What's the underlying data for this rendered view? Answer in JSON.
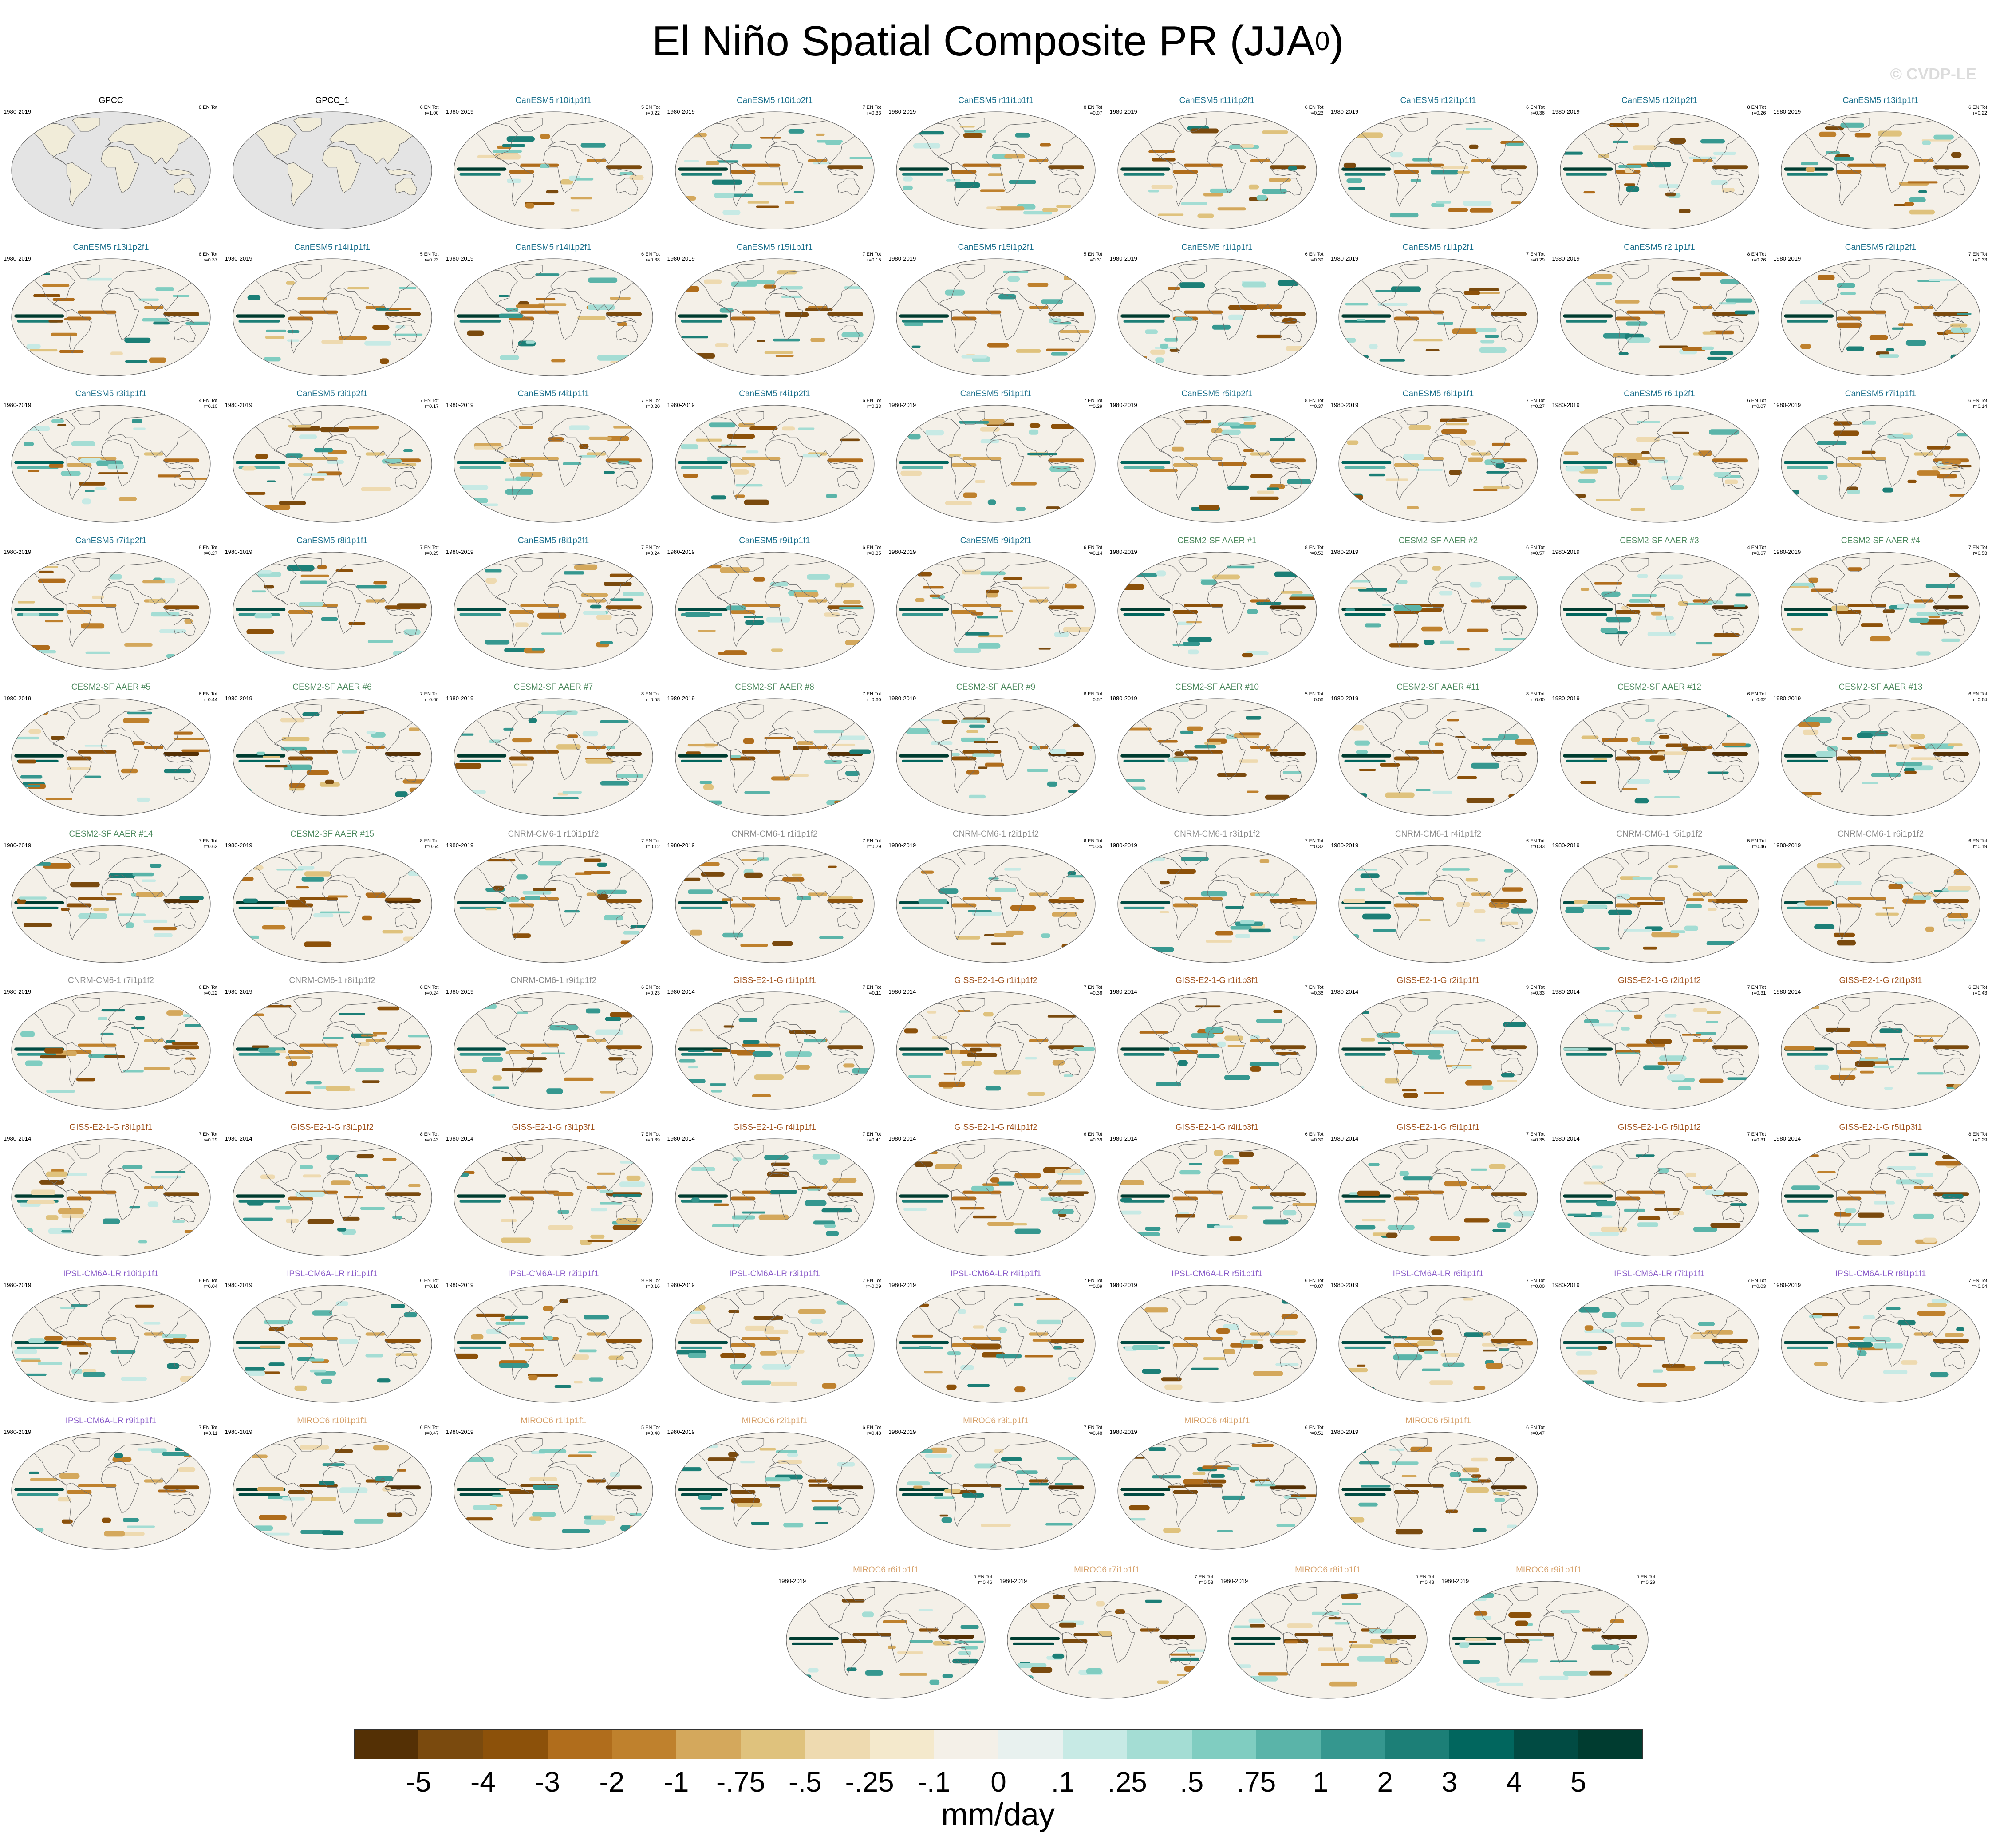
{
  "title": {
    "main": "El Niño Spatial Composite PR (JJA",
    "superscript": "0",
    "tail": ")"
  },
  "watermark": "© CVDP-LE",
  "groups": {
    "obs": {
      "color": "#000000"
    },
    "CanESM5": {
      "color": "#1a6f8c"
    },
    "CESM2-SF AAER": {
      "color": "#4e8a5f"
    },
    "CNRM-CM6-1": {
      "color": "#8c8c8c"
    },
    "GISS-E2-1-G": {
      "color": "#a0521d"
    },
    "IPSL-CM6A-LR": {
      "color": "#8a5cc9"
    },
    "MIROC6": {
      "color": "#d6a069"
    }
  },
  "panels": [
    {
      "title": "GPCC",
      "period": "1980-2019",
      "count": "8 EN Tot",
      "r": "",
      "group": "obs",
      "pattern": 0
    },
    {
      "title": "GPCC_1",
      "period": "",
      "count": "6 EN Tot",
      "r": "r=1.00",
      "group": "obs",
      "pattern": 0
    },
    {
      "title": "CanESM5 r10i1p1f1",
      "period": "1980-2019",
      "count": "5 EN Tot",
      "r": "r=0.22",
      "group": "CanESM5",
      "pattern": 1
    },
    {
      "title": "CanESM5 r10i1p2f1",
      "period": "1980-2019",
      "count": "7 EN Tot",
      "r": "r=0.33",
      "group": "CanESM5",
      "pattern": 1
    },
    {
      "title": "CanESM5 r11i1p1f1",
      "period": "1980-2019",
      "count": "8 EN Tot",
      "r": "r=0.07",
      "group": "CanESM5",
      "pattern": 1
    },
    {
      "title": "CanESM5 r11i1p2f1",
      "period": "1980-2019",
      "count": "6 EN Tot",
      "r": "r=0.23",
      "group": "CanESM5",
      "pattern": 1
    },
    {
      "title": "CanESM5 r12i1p1f1",
      "period": "1980-2019",
      "count": "6 EN Tot",
      "r": "r=0.36",
      "group": "CanESM5",
      "pattern": 1
    },
    {
      "title": "CanESM5 r12i1p2f1",
      "period": "1980-2019",
      "count": "8 EN Tot",
      "r": "r=0.26",
      "group": "CanESM5",
      "pattern": 1
    },
    {
      "title": "CanESM5 r13i1p1f1",
      "period": "1980-2019",
      "count": "6 EN Tot",
      "r": "r=0.22",
      "group": "CanESM5",
      "pattern": 1
    },
    {
      "title": "CanESM5 r13i1p2f1",
      "period": "1980-2019",
      "count": "8 EN Tot",
      "r": "r=0.37",
      "group": "CanESM5",
      "pattern": 2
    },
    {
      "title": "CanESM5 r14i1p1f1",
      "period": "1980-2019",
      "count": "5 EN Tot",
      "r": "r=0.23",
      "group": "CanESM5",
      "pattern": 2
    },
    {
      "title": "CanESM5 r14i1p2f1",
      "period": "1980-2019",
      "count": "6 EN Tot",
      "r": "r=0.38",
      "group": "CanESM5",
      "pattern": 2
    },
    {
      "title": "CanESM5 r15i1p1f1",
      "period": "1980-2019",
      "count": "7 EN Tot",
      "r": "r=0.15",
      "group": "CanESM5",
      "pattern": 2
    },
    {
      "title": "CanESM5 r15i1p2f1",
      "period": "1980-2019",
      "count": "5 EN Tot",
      "r": "r=0.31",
      "group": "CanESM5",
      "pattern": 2
    },
    {
      "title": "CanESM5 r1i1p1f1",
      "period": "1980-2019",
      "count": "6 EN Tot",
      "r": "r=0.39",
      "group": "CanESM5",
      "pattern": 2
    },
    {
      "title": "CanESM5 r1i1p2f1",
      "period": "1980-2019",
      "count": "7 EN Tot",
      "r": "r=0.29",
      "group": "CanESM5",
      "pattern": 2
    },
    {
      "title": "CanESM5 r2i1p1f1",
      "period": "1980-2019",
      "count": "8 EN Tot",
      "r": "r=0.26",
      "group": "CanESM5",
      "pattern": 2
    },
    {
      "title": "CanESM5 r2i1p2f1",
      "period": "1980-2019",
      "count": "7 EN Tot",
      "r": "r=0.33",
      "group": "CanESM5",
      "pattern": 2
    },
    {
      "title": "CanESM5 r3i1p1f1",
      "period": "1980-2019",
      "count": "4 EN Tot",
      "r": "r=0.10",
      "group": "CanESM5",
      "pattern": 3
    },
    {
      "title": "CanESM5 r3i1p2f1",
      "period": "1980-2019",
      "count": "7 EN Tot",
      "r": "r=0.17",
      "group": "CanESM5",
      "pattern": 3
    },
    {
      "title": "CanESM5 r4i1p1f1",
      "period": "1980-2019",
      "count": "7 EN Tot",
      "r": "r=0.20",
      "group": "CanESM5",
      "pattern": 3
    },
    {
      "title": "CanESM5 r4i1p2f1",
      "period": "1980-2019",
      "count": "6 EN Tot",
      "r": "r=0.23",
      "group": "CanESM5",
      "pattern": 3
    },
    {
      "title": "CanESM5 r5i1p1f1",
      "period": "1980-2019",
      "count": "7 EN Tot",
      "r": "r=0.29",
      "group": "CanESM5",
      "pattern": 3
    },
    {
      "title": "CanESM5 r5i1p2f1",
      "period": "1980-2019",
      "count": "8 EN Tot",
      "r": "r=0.37",
      "group": "CanESM5",
      "pattern": 3
    },
    {
      "title": "CanESM5 r6i1p1f1",
      "period": "1980-2019",
      "count": "7 EN Tot",
      "r": "r=0.27",
      "group": "CanESM5",
      "pattern": 3
    },
    {
      "title": "CanESM5 r6i1p2f1",
      "period": "1980-2019",
      "count": "6 EN Tot",
      "r": "r=0.07",
      "group": "CanESM5",
      "pattern": 3
    },
    {
      "title": "CanESM5 r7i1p1f1",
      "period": "1980-2019",
      "count": "6 EN Tot",
      "r": "r=0.14",
      "group": "CanESM5",
      "pattern": 3
    },
    {
      "title": "CanESM5 r7i1p2f1",
      "period": "1980-2019",
      "count": "8 EN Tot",
      "r": "r=0.27",
      "group": "CanESM5",
      "pattern": 4
    },
    {
      "title": "CanESM5 r8i1p1f1",
      "period": "1980-2019",
      "count": "7 EN Tot",
      "r": "r=0.25",
      "group": "CanESM5",
      "pattern": 4
    },
    {
      "title": "CanESM5 r8i1p2f1",
      "period": "1980-2019",
      "count": "7 EN Tot",
      "r": "r=0.24",
      "group": "CanESM5",
      "pattern": 4
    },
    {
      "title": "CanESM5 r9i1p1f1",
      "period": "1980-2019",
      "count": "6 EN Tot",
      "r": "r=0.35",
      "group": "CanESM5",
      "pattern": 4
    },
    {
      "title": "CanESM5 r9i1p2f1",
      "period": "1980-2019",
      "count": "6 EN Tot",
      "r": "r=0.14",
      "group": "CanESM5",
      "pattern": 4
    },
    {
      "title": "CESM2-SF AAER #1",
      "period": "1980-2019",
      "count": "8 EN Tot",
      "r": "r=0.53",
      "group": "CESM2-SF AAER",
      "pattern": 5
    },
    {
      "title": "CESM2-SF AAER #2",
      "period": "1980-2019",
      "count": "6 EN Tot",
      "r": "r=0.57",
      "group": "CESM2-SF AAER",
      "pattern": 5
    },
    {
      "title": "CESM2-SF AAER #3",
      "period": "1980-2019",
      "count": "4 EN Tot",
      "r": "r=0.67",
      "group": "CESM2-SF AAER",
      "pattern": 5
    },
    {
      "title": "CESM2-SF AAER #4",
      "period": "1980-2019",
      "count": "7 EN Tot",
      "r": "r=0.53",
      "group": "CESM2-SF AAER",
      "pattern": 5
    },
    {
      "title": "CESM2-SF AAER #5",
      "period": "1980-2019",
      "count": "6 EN Tot",
      "r": "r=0.44",
      "group": "CESM2-SF AAER",
      "pattern": 5
    },
    {
      "title": "CESM2-SF AAER #6",
      "period": "1980-2019",
      "count": "7 EN Tot",
      "r": "r=0.60",
      "group": "CESM2-SF AAER",
      "pattern": 5
    },
    {
      "title": "CESM2-SF AAER #7",
      "period": "1980-2019",
      "count": "8 EN Tot",
      "r": "r=0.58",
      "group": "CESM2-SF AAER",
      "pattern": 5
    },
    {
      "title": "CESM2-SF AAER #8",
      "period": "1980-2019",
      "count": "7 EN Tot",
      "r": "r=0.60",
      "group": "CESM2-SF AAER",
      "pattern": 5
    },
    {
      "title": "CESM2-SF AAER #9",
      "period": "1980-2019",
      "count": "6 EN Tot",
      "r": "r=0.57",
      "group": "CESM2-SF AAER",
      "pattern": 5
    },
    {
      "title": "CESM2-SF AAER #10",
      "period": "1980-2019",
      "count": "5 EN Tot",
      "r": "r=0.56",
      "group": "CESM2-SF AAER",
      "pattern": 5
    },
    {
      "title": "CESM2-SF AAER #11",
      "period": "1980-2019",
      "count": "8 EN Tot",
      "r": "r=0.60",
      "group": "CESM2-SF AAER",
      "pattern": 5
    },
    {
      "title": "CESM2-SF AAER #12",
      "period": "1980-2019",
      "count": "6 EN Tot",
      "r": "r=0.62",
      "group": "CESM2-SF AAER",
      "pattern": 5
    },
    {
      "title": "CESM2-SF AAER #13",
      "period": "1980-2019",
      "count": "6 EN Tot",
      "r": "r=0.64",
      "group": "CESM2-SF AAER",
      "pattern": 5
    },
    {
      "title": "CESM2-SF AAER #14",
      "period": "1980-2019",
      "count": "7 EN Tot",
      "r": "r=0.62",
      "group": "CESM2-SF AAER",
      "pattern": 5
    },
    {
      "title": "CESM2-SF AAER #15",
      "period": "1980-2019",
      "count": "8 EN Tot",
      "r": "r=0.64",
      "group": "CESM2-SF AAER",
      "pattern": 5
    },
    {
      "title": "CNRM-CM6-1 r10i1p1f2",
      "period": "1980-2019",
      "count": "7 EN Tot",
      "r": "r=0.12",
      "group": "CNRM-CM6-1",
      "pattern": 6
    },
    {
      "title": "CNRM-CM6-1 r1i1p1f2",
      "period": "1980-2019",
      "count": "7 EN Tot",
      "r": "r=0.29",
      "group": "CNRM-CM6-1",
      "pattern": 6
    },
    {
      "title": "CNRM-CM6-1 r2i1p1f2",
      "period": "1980-2019",
      "count": "6 EN Tot",
      "r": "r=0.35",
      "group": "CNRM-CM6-1",
      "pattern": 6
    },
    {
      "title": "CNRM-CM6-1 r3i1p1f2",
      "period": "1980-2019",
      "count": "7 EN Tot",
      "r": "r=0.32",
      "group": "CNRM-CM6-1",
      "pattern": 6
    },
    {
      "title": "CNRM-CM6-1 r4i1p1f2",
      "period": "1980-2019",
      "count": "6 EN Tot",
      "r": "r=0.33",
      "group": "CNRM-CM6-1",
      "pattern": 6
    },
    {
      "title": "CNRM-CM6-1 r5i1p1f2",
      "period": "1980-2019",
      "count": "5 EN Tot",
      "r": "r=0.46",
      "group": "CNRM-CM6-1",
      "pattern": 6
    },
    {
      "title": "CNRM-CM6-1 r6i1p1f2",
      "period": "1980-2019",
      "count": "6 EN Tot",
      "r": "r=0.19",
      "group": "CNRM-CM6-1",
      "pattern": 6
    },
    {
      "title": "CNRM-CM6-1 r7i1p1f2",
      "period": "1980-2019",
      "count": "6 EN Tot",
      "r": "r=0.22",
      "group": "CNRM-CM6-1",
      "pattern": 6
    },
    {
      "title": "CNRM-CM6-1 r8i1p1f2",
      "period": "1980-2019",
      "count": "6 EN Tot",
      "r": "r=0.24",
      "group": "CNRM-CM6-1",
      "pattern": 6
    },
    {
      "title": "CNRM-CM6-1 r9i1p1f2",
      "period": "1980-2019",
      "count": "6 EN Tot",
      "r": "r=0.23",
      "group": "CNRM-CM6-1",
      "pattern": 6
    },
    {
      "title": "GISS-E2-1-G r1i1p1f1",
      "period": "1980-2014",
      "count": "7 EN Tot",
      "r": "r=0.11",
      "group": "GISS-E2-1-G",
      "pattern": 7
    },
    {
      "title": "GISS-E2-1-G r1i1p1f2",
      "period": "1980-2014",
      "count": "7 EN Tot",
      "r": "r=0.38",
      "group": "GISS-E2-1-G",
      "pattern": 7
    },
    {
      "title": "GISS-E2-1-G r1i1p3f1",
      "period": "1980-2014",
      "count": "7 EN Tot",
      "r": "r=0.36",
      "group": "GISS-E2-1-G",
      "pattern": 7
    },
    {
      "title": "GISS-E2-1-G r2i1p1f1",
      "period": "1980-2014",
      "count": "9 EN Tot",
      "r": "r=0.33",
      "group": "GISS-E2-1-G",
      "pattern": 7
    },
    {
      "title": "GISS-E2-1-G r2i1p1f2",
      "period": "1980-2014",
      "count": "7 EN Tot",
      "r": "r=0.31",
      "group": "GISS-E2-1-G",
      "pattern": 7
    },
    {
      "title": "GISS-E2-1-G r2i1p3f1",
      "period": "1980-2014",
      "count": "6 EN Tot",
      "r": "r=0.43",
      "group": "GISS-E2-1-G",
      "pattern": 7
    },
    {
      "title": "GISS-E2-1-G r3i1p1f1",
      "period": "1980-2014",
      "count": "7 EN Tot",
      "r": "r=0.29",
      "group": "GISS-E2-1-G",
      "pattern": 7
    },
    {
      "title": "GISS-E2-1-G r3i1p1f2",
      "period": "1980-2014",
      "count": "8 EN Tot",
      "r": "r=0.43",
      "group": "GISS-E2-1-G",
      "pattern": 7
    },
    {
      "title": "GISS-E2-1-G r3i1p3f1",
      "period": "1980-2014",
      "count": "7 EN Tot",
      "r": "r=0.39",
      "group": "GISS-E2-1-G",
      "pattern": 7
    },
    {
      "title": "GISS-E2-1-G r4i1p1f1",
      "period": "1980-2014",
      "count": "7 EN Tot",
      "r": "r=0.41",
      "group": "GISS-E2-1-G",
      "pattern": 7
    },
    {
      "title": "GISS-E2-1-G r4i1p1f2",
      "period": "1980-2014",
      "count": "6 EN Tot",
      "r": "r=0.39",
      "group": "GISS-E2-1-G",
      "pattern": 7
    },
    {
      "title": "GISS-E2-1-G r4i1p3f1",
      "period": "1980-2014",
      "count": "6 EN Tot",
      "r": "r=0.39",
      "group": "GISS-E2-1-G",
      "pattern": 7
    },
    {
      "title": "GISS-E2-1-G r5i1p1f1",
      "period": "1980-2014",
      "count": "7 EN Tot",
      "r": "r=0.35",
      "group": "GISS-E2-1-G",
      "pattern": 7
    },
    {
      "title": "GISS-E2-1-G r5i1p1f2",
      "period": "1980-2014",
      "count": "7 EN Tot",
      "r": "r=0.31",
      "group": "GISS-E2-1-G",
      "pattern": 7
    },
    {
      "title": "GISS-E2-1-G r5i1p3f1",
      "period": "1980-2014",
      "count": "8 EN Tot",
      "r": "r=0.29",
      "group": "GISS-E2-1-G",
      "pattern": 7
    },
    {
      "title": "IPSL-CM6A-LR r10i1p1f1",
      "period": "1980-2019",
      "count": "8 EN Tot",
      "r": "r=0.04",
      "group": "IPSL-CM6A-LR",
      "pattern": 8
    },
    {
      "title": "IPSL-CM6A-LR r1i1p1f1",
      "period": "1980-2019",
      "count": "6 EN Tot",
      "r": "r=0.10",
      "group": "IPSL-CM6A-LR",
      "pattern": 8
    },
    {
      "title": "IPSL-CM6A-LR r2i1p1f1",
      "period": "1980-2019",
      "count": "9 EN Tot",
      "r": "r=0.16",
      "group": "IPSL-CM6A-LR",
      "pattern": 8
    },
    {
      "title": "IPSL-CM6A-LR r3i1p1f1",
      "period": "1980-2019",
      "count": "7 EN Tot",
      "r": "r=-0.09",
      "group": "IPSL-CM6A-LR",
      "pattern": 8
    },
    {
      "title": "IPSL-CM6A-LR r4i1p1f1",
      "period": "1980-2019",
      "count": "7 EN Tot",
      "r": "r=0.09",
      "group": "IPSL-CM6A-LR",
      "pattern": 8
    },
    {
      "title": "IPSL-CM6A-LR r5i1p1f1",
      "period": "1980-2019",
      "count": "6 EN Tot",
      "r": "r=0.07",
      "group": "IPSL-CM6A-LR",
      "pattern": 8
    },
    {
      "title": "IPSL-CM6A-LR r6i1p1f1",
      "period": "1980-2019",
      "count": "7 EN Tot",
      "r": "r=0.00",
      "group": "IPSL-CM6A-LR",
      "pattern": 8
    },
    {
      "title": "IPSL-CM6A-LR r7i1p1f1",
      "period": "1980-2019",
      "count": "7 EN Tot",
      "r": "r=0.03",
      "group": "IPSL-CM6A-LR",
      "pattern": 8
    },
    {
      "title": "IPSL-CM6A-LR r8i1p1f1",
      "period": "1980-2019",
      "count": "7 EN Tot",
      "r": "r=-0.04",
      "group": "IPSL-CM6A-LR",
      "pattern": 8
    },
    {
      "title": "IPSL-CM6A-LR r9i1p1f1",
      "period": "1980-2019",
      "count": "7 EN Tot",
      "r": "r=0.11",
      "group": "IPSL-CM6A-LR",
      "pattern": 8
    },
    {
      "title": "MIROC6 r10i1p1f1",
      "period": "1980-2019",
      "count": "6 EN Tot",
      "r": "r=0.47",
      "group": "MIROC6",
      "pattern": 9
    },
    {
      "title": "MIROC6 r1i1p1f1",
      "period": "1980-2019",
      "count": "5 EN Tot",
      "r": "r=0.40",
      "group": "MIROC6",
      "pattern": 9
    },
    {
      "title": "MIROC6 r2i1p1f1",
      "period": "1980-2019",
      "count": "6 EN Tot",
      "r": "r=0.48",
      "group": "MIROC6",
      "pattern": 9
    },
    {
      "title": "MIROC6 r3i1p1f1",
      "period": "1980-2019",
      "count": "7 EN Tot",
      "r": "r=0.48",
      "group": "MIROC6",
      "pattern": 9
    },
    {
      "title": "MIROC6 r4i1p1f1",
      "period": "1980-2019",
      "count": "6 EN Tot",
      "r": "r=0.51",
      "group": "MIROC6",
      "pattern": 9
    },
    {
      "title": "MIROC6 r5i1p1f1",
      "period": "1980-2019",
      "count": "6 EN Tot",
      "r": "r=0.47",
      "group": "MIROC6",
      "pattern": 9
    },
    {
      "title": "MIROC6 r6i1p1f1",
      "period": "1980-2019",
      "count": "5 EN Tot",
      "r": "r=0.46",
      "group": "MIROC6",
      "pattern": 9
    },
    {
      "title": "MIROC6 r7i1p1f1",
      "period": "1980-2019",
      "count": "7 EN Tot",
      "r": "r=0.53",
      "group": "MIROC6",
      "pattern": 9
    },
    {
      "title": "MIROC6 r8i1p1f1",
      "period": "1980-2019",
      "count": "5 EN Tot",
      "r": "r=0.48",
      "group": "MIROC6",
      "pattern": 9
    },
    {
      "title": "MIROC6 r9i1p1f1",
      "period": "1980-2019",
      "count": "5 EN Tot",
      "r": "r=0.29",
      "group": "MIROC6",
      "pattern": 9
    }
  ],
  "colorbar": {
    "unit": "mm/day",
    "colors": [
      "#543005",
      "#7a4a0e",
      "#8c510a",
      "#b06d1c",
      "#bf812d",
      "#d4a85c",
      "#dfc27d",
      "#eedab0",
      "#f4e9cc",
      "#f4f0e8",
      "#e8f1ef",
      "#c7eae5",
      "#a4ddd4",
      "#80cdc1",
      "#5ab4a9",
      "#35978f",
      "#1c7f77",
      "#01665e",
      "#014b43",
      "#003c30"
    ],
    "labels": [
      "-5",
      "-4",
      "-3",
      "-2",
      "-1",
      "-.75",
      "-.5",
      "-.25",
      "-.1",
      "0",
      ".1",
      ".25",
      ".5",
      ".75",
      "1",
      "2",
      "3",
      "4",
      "5"
    ]
  }
}
